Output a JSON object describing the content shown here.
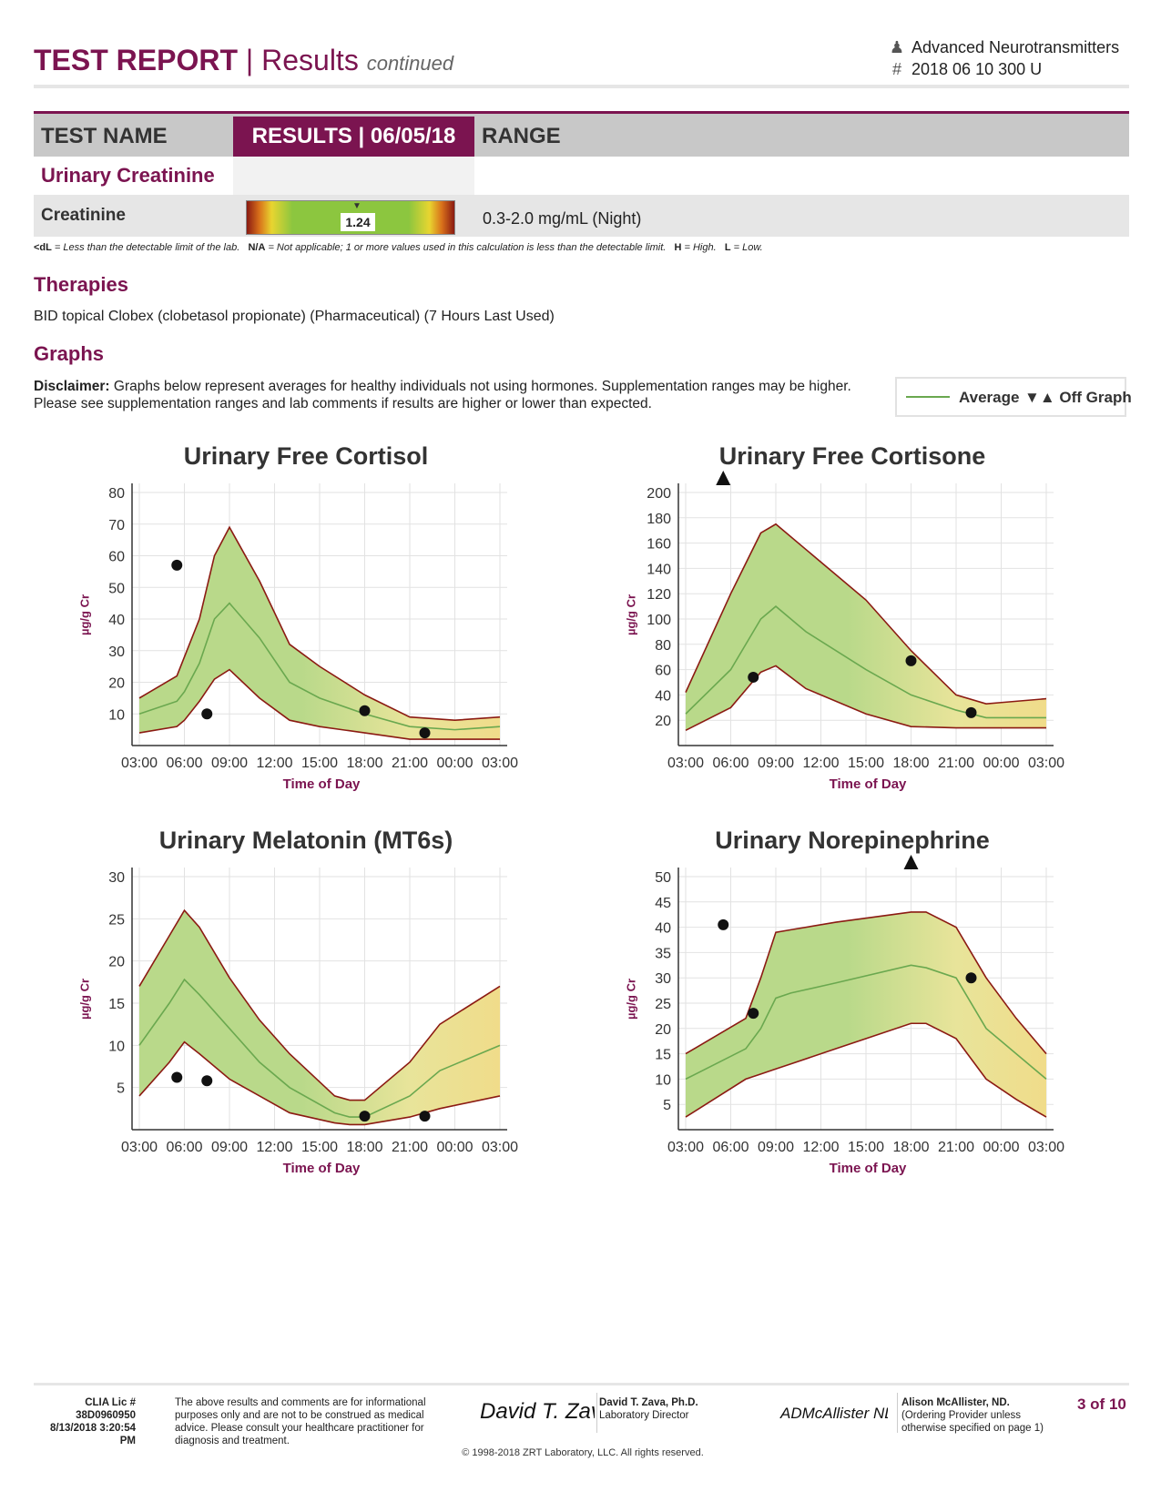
{
  "header": {
    "title_bold": "TEST REPORT",
    "separator": "|",
    "title_rest": "Results",
    "title_sub": "continued",
    "test_name": "Advanced Neurotransmitters",
    "id_prefix": "#",
    "id_value": "2018 06 10 300 U",
    "user_icon": "user-icon"
  },
  "table": {
    "headers": [
      "TEST NAME",
      "RESULTS | 06/05/18",
      "RANGE"
    ],
    "section": "Urinary Creatinine",
    "row": {
      "name": "Creatinine",
      "value": "1.24",
      "range": "0.3-2.0 mg/mL (Night)",
      "position": 0.52
    }
  },
  "legend_line": {
    "k1": "<dL",
    "v1": " = Less than the detectable limit of the lab.",
    "k2": "N/A",
    "v2": " = Not applicable; 1 or more values used in this calculation is less than the detectable limit.",
    "k3": "H",
    "v3": " = High.",
    "k4": "L",
    "v4": " = Low."
  },
  "therapies": {
    "title": "Therapies",
    "text": "BID topical Clobex (clobetasol propionate) (Pharmaceutical) (7 Hours Last Used)"
  },
  "graphs": {
    "title": "Graphs",
    "disclaimer_bold": "Disclaimer:",
    "disclaimer_text": " Graphs below represent averages for healthy individuals not using hormones. Supplementation ranges may be higher. Please see supplementation ranges and lab comments if results are higher or lower than expected.",
    "legend_average": "Average",
    "legend_offgraph": "Off Graph",
    "legend_offgraph_symbol": "▼▲"
  },
  "chart_data": [
    {
      "type": "line",
      "title": "Urinary Free Cortisol",
      "xlabel": "Time of Day",
      "ylabel": "µg/g Cr",
      "x_ticks": [
        "03:00",
        "06:00",
        "09:00",
        "12:00",
        "15:00",
        "18:00",
        "21:00",
        "00:00",
        "03:00"
      ],
      "ylim": [
        0,
        80
      ],
      "y_ticks": [
        10,
        20,
        30,
        40,
        50,
        60,
        70,
        80
      ],
      "band_x": [
        0,
        2.5,
        3,
        4,
        5,
        6,
        8,
        10,
        12,
        15,
        18,
        21,
        24
      ],
      "band_upper": [
        15,
        22,
        28,
        40,
        60,
        69,
        52,
        32,
        25,
        16,
        9,
        8,
        9
      ],
      "band_avg": [
        10,
        14,
        17,
        26,
        40,
        45,
        34,
        20,
        15,
        10,
        6,
        5,
        6
      ],
      "band_lower": [
        4,
        6,
        8,
        14,
        21,
        24,
        15,
        8,
        6,
        4,
        2,
        2,
        2
      ],
      "points_x": [
        2.5,
        4.5,
        15,
        19
      ],
      "points_y": [
        57,
        10,
        11,
        4
      ],
      "off_graph_x": []
    },
    {
      "type": "line",
      "title": "Urinary Free Cortisone",
      "xlabel": "Time of Day",
      "ylabel": "µg/g Cr",
      "x_ticks": [
        "03:00",
        "06:00",
        "09:00",
        "12:00",
        "15:00",
        "18:00",
        "21:00",
        "00:00",
        "03:00"
      ],
      "ylim": [
        0,
        200
      ],
      "y_ticks": [
        20,
        40,
        60,
        80,
        100,
        120,
        140,
        160,
        180,
        200
      ],
      "band_x": [
        0,
        3,
        5,
        6,
        8,
        12,
        15,
        18,
        20,
        21,
        24
      ],
      "band_upper": [
        42,
        120,
        168,
        175,
        155,
        115,
        75,
        40,
        33,
        34,
        37
      ],
      "band_avg": [
        25,
        60,
        100,
        110,
        90,
        60,
        40,
        28,
        22,
        22,
        22
      ],
      "band_lower": [
        12,
        30,
        58,
        63,
        45,
        25,
        15,
        14,
        14,
        14,
        14
      ],
      "points_x": [
        4.5,
        15,
        19
      ],
      "points_y": [
        54,
        67,
        26
      ],
      "off_graph_x": [
        2.5
      ]
    },
    {
      "type": "line",
      "title": "Urinary Melatonin (MT6s)",
      "xlabel": "Time of Day",
      "ylabel": "µg/g Cr",
      "x_ticks": [
        "03:00",
        "06:00",
        "09:00",
        "12:00",
        "15:00",
        "18:00",
        "21:00",
        "00:00",
        "03:00"
      ],
      "ylim": [
        0,
        30
      ],
      "y_ticks": [
        5,
        10,
        15,
        20,
        25,
        30
      ],
      "band_x": [
        0,
        2,
        3,
        4,
        6,
        8,
        10,
        13,
        14,
        15,
        18,
        20,
        24
      ],
      "band_upper": [
        17,
        23,
        26,
        24,
        18,
        13,
        9,
        4,
        3.5,
        3.5,
        8,
        12.5,
        17
      ],
      "band_avg": [
        10,
        15,
        17.8,
        16,
        12,
        8,
        5,
        2,
        1.5,
        1.5,
        4,
        7,
        10
      ],
      "band_lower": [
        4,
        8,
        10.4,
        9,
        6,
        4,
        2,
        0.8,
        0.6,
        0.6,
        1.5,
        2.5,
        4
      ],
      "points_x": [
        2.5,
        4.5,
        15,
        19
      ],
      "points_y": [
        6.2,
        5.8,
        1.6,
        1.6
      ],
      "off_graph_x": []
    },
    {
      "type": "line",
      "title": "Urinary Norepinephrine",
      "xlabel": "Time of Day",
      "ylabel": "µg/g Cr",
      "x_ticks": [
        "03:00",
        "06:00",
        "09:00",
        "12:00",
        "15:00",
        "18:00",
        "21:00",
        "00:00",
        "03:00"
      ],
      "ylim": [
        0,
        50
      ],
      "y_ticks": [
        5,
        10,
        15,
        20,
        25,
        30,
        35,
        40,
        45,
        50
      ],
      "band_x": [
        0,
        4,
        5,
        6,
        7,
        10,
        15,
        16,
        18,
        20,
        22,
        24
      ],
      "band_upper": [
        15,
        22,
        30,
        39,
        39.5,
        41,
        43,
        43,
        40,
        30,
        22,
        15
      ],
      "band_avg": [
        10,
        16,
        20,
        26,
        27,
        29,
        32.5,
        32,
        30,
        20,
        15,
        10
      ],
      "band_lower": [
        2.5,
        10,
        11,
        12,
        13,
        16,
        21,
        21,
        18,
        10,
        6,
        2.5
      ],
      "points_x": [
        2.5,
        4.5,
        19
      ],
      "points_y": [
        40.5,
        23,
        30
      ],
      "off_graph_x": [
        15
      ]
    }
  ],
  "footer": {
    "clia_line1": "CLIA Lic # 38D0960950",
    "clia_line2": "8/13/2018 3:20:54 PM",
    "disclaimer": "The above results and comments are for informational purposes only and are not to be construed as medical advice. Please consult your healthcare practitioner for diagnosis and treatment.",
    "director_name": "David T. Zava, Ph.D.",
    "director_title": "Laboratory Director",
    "provider_name": "Alison McAllister, ND.",
    "provider_note1": "(Ordering Provider unless",
    "provider_note2": "otherwise specified on page 1)",
    "page": "3 of 10",
    "copyright": "© 1998-2018 ZRT Laboratory, LLC. All rights reserved.",
    "signature1_text": "David T. Zava",
    "signature2_text": "ADMcAllister ND"
  }
}
